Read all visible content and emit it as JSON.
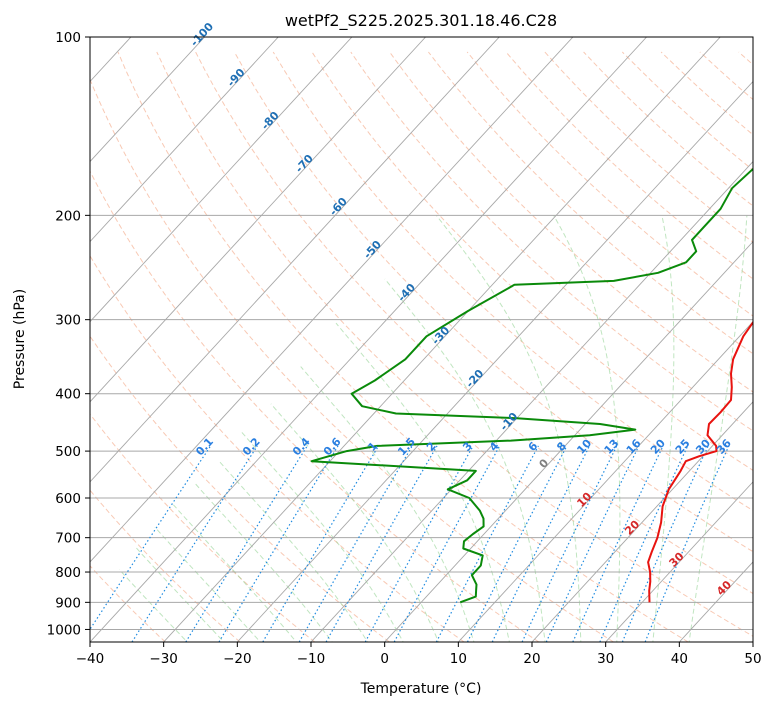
{
  "chart_data": {
    "type": "skew-t",
    "title": "wetPf2_S225.2025.301.18.46.C28",
    "xlabel": "Temperature (°C)",
    "ylabel": "Pressure (hPa)",
    "xlim": [
      -40,
      50
    ],
    "ylim": [
      1050,
      100
    ],
    "x_ticks": [
      "−40",
      "−30",
      "−20",
      "−10",
      "0",
      "10",
      "20",
      "30",
      "40",
      "50"
    ],
    "y_ticks": [
      {
        "p": 100,
        "label": "100"
      },
      {
        "p": 200,
        "label": "200"
      },
      {
        "p": 300,
        "label": "300"
      },
      {
        "p": 400,
        "label": "400"
      },
      {
        "p": 500,
        "label": "500"
      },
      {
        "p": 600,
        "label": "600"
      },
      {
        "p": 700,
        "label": "700"
      },
      {
        "p": 800,
        "label": "800"
      },
      {
        "p": 900,
        "label": "900"
      },
      {
        "p": 1000,
        "label": "1000"
      }
    ],
    "colors": {
      "temperature": "#e8130f",
      "dewpoint": "#0a8a0a",
      "isotherm": "#a8a8a8",
      "dry_adiabat": "#f4a582",
      "moist_adiabat": "#8ccf8c",
      "mixing_ratio": "#1f8be0",
      "mixing_label": "#2a7fe0",
      "isotherm_label": "#1f6fb4",
      "isotherm_zero_label": "#808080",
      "dry_label": "#d62728"
    },
    "series": [
      {
        "name": "Temperature",
        "points": [
          {
            "p": 900,
            "t": 31.0
          },
          {
            "p": 860,
            "t": 29.5
          },
          {
            "p": 830,
            "t": 28.5
          },
          {
            "p": 800,
            "t": 27.3
          },
          {
            "p": 770,
            "t": 25.8
          },
          {
            "p": 740,
            "t": 25.0
          },
          {
            "p": 700,
            "t": 24.0
          },
          {
            "p": 660,
            "t": 22.6
          },
          {
            "p": 620,
            "t": 20.8
          },
          {
            "p": 580,
            "t": 19.5
          },
          {
            "p": 540,
            "t": 18.8
          },
          {
            "p": 520,
            "t": 18.3
          },
          {
            "p": 510,
            "t": 19.5
          },
          {
            "p": 500,
            "t": 21.2
          },
          {
            "p": 490,
            "t": 20.5
          },
          {
            "p": 470,
            "t": 18.0
          },
          {
            "p": 450,
            "t": 16.8
          },
          {
            "p": 430,
            "t": 16.9
          },
          {
            "p": 410,
            "t": 16.8
          },
          {
            "p": 390,
            "t": 15.3
          },
          {
            "p": 370,
            "t": 13.5
          },
          {
            "p": 350,
            "t": 12.0
          },
          {
            "p": 320,
            "t": 10.5
          },
          {
            "p": 300,
            "t": 10.0
          },
          {
            "p": 280,
            "t": 8.5
          },
          {
            "p": 260,
            "t": 6.0
          },
          {
            "p": 240,
            "t": 3.3
          },
          {
            "p": 220,
            "t": 3.0
          },
          {
            "p": 200,
            "t": 3.3
          },
          {
            "p": 180,
            "t": 4.5
          },
          {
            "p": 160,
            "t": 4.6
          },
          {
            "p": 140,
            "t": 4.2
          },
          {
            "p": 125,
            "t": 5.5
          },
          {
            "p": 112,
            "t": 7.0
          },
          {
            "p": 100,
            "t": 8.8
          }
        ]
      },
      {
        "name": "Dewpoint",
        "points": [
          {
            "p": 900,
            "t": 5.3
          },
          {
            "p": 880,
            "t": 6.7
          },
          {
            "p": 860,
            "t": 6.0
          },
          {
            "p": 840,
            "t": 5.3
          },
          {
            "p": 810,
            "t": 3.5
          },
          {
            "p": 780,
            "t": 3.5
          },
          {
            "p": 750,
            "t": 2.5
          },
          {
            "p": 730,
            "t": -1.0
          },
          {
            "p": 710,
            "t": -1.8
          },
          {
            "p": 690,
            "t": -1.5
          },
          {
            "p": 670,
            "t": -1.0
          },
          {
            "p": 650,
            "t": -2.0
          },
          {
            "p": 630,
            "t": -3.5
          },
          {
            "p": 600,
            "t": -6.5
          },
          {
            "p": 580,
            "t": -10.5
          },
          {
            "p": 560,
            "t": -9.0
          },
          {
            "p": 540,
            "t": -9.0
          },
          {
            "p": 520,
            "t": -32.5
          },
          {
            "p": 500,
            "t": -29.0
          },
          {
            "p": 490,
            "t": -25.5
          },
          {
            "p": 480,
            "t": -8.0
          },
          {
            "p": 470,
            "t": 2.0
          },
          {
            "p": 460,
            "t": 7.5
          },
          {
            "p": 450,
            "t": 2.0
          },
          {
            "p": 440,
            "t": -10.0
          },
          {
            "p": 432,
            "t": -27.0
          },
          {
            "p": 420,
            "t": -32.5
          },
          {
            "p": 400,
            "t": -35.5
          },
          {
            "p": 380,
            "t": -34.0
          },
          {
            "p": 350,
            "t": -32.5
          },
          {
            "p": 320,
            "t": -32.5
          },
          {
            "p": 290,
            "t": -30.0
          },
          {
            "p": 262,
            "t": -27.0
          },
          {
            "p": 258,
            "t": -14.0
          },
          {
            "p": 250,
            "t": -9.0
          },
          {
            "p": 240,
            "t": -6.5
          },
          {
            "p": 230,
            "t": -6.5
          },
          {
            "p": 220,
            "t": -8.5
          },
          {
            "p": 210,
            "t": -8.5
          },
          {
            "p": 195,
            "t": -8.5
          },
          {
            "p": 180,
            "t": -9.5
          },
          {
            "p": 165,
            "t": -9.0
          },
          {
            "p": 150,
            "t": -7.5
          },
          {
            "p": 130,
            "t": -5.5
          },
          {
            "p": 115,
            "t": -2.5
          },
          {
            "p": 100,
            "t": 0.5
          }
        ]
      }
    ],
    "isotherm_labels": [
      {
        "t": -100,
        "text": "-100"
      },
      {
        "t": -90,
        "text": "-90"
      },
      {
        "t": -80,
        "text": "-80"
      },
      {
        "t": -70,
        "text": "-70"
      },
      {
        "t": -60,
        "text": "-60"
      },
      {
        "t": -50,
        "text": "-50"
      },
      {
        "t": -40,
        "text": "-40"
      },
      {
        "t": -30,
        "text": "-30"
      },
      {
        "t": -20,
        "text": "-20"
      },
      {
        "t": -10,
        "text": "-10"
      }
    ],
    "isotherm_zero_label": {
      "t": 0,
      "p": 530,
      "text": "0"
    },
    "dry_adiabat_labels": [
      {
        "t": 10,
        "p": 610,
        "text": "10"
      },
      {
        "t": 20,
        "p": 680,
        "text": "20"
      },
      {
        "t": 30,
        "p": 770,
        "text": "30"
      },
      {
        "t": 40,
        "p": 860,
        "text": "40"
      }
    ],
    "mixing_ratios": [
      {
        "w": 0.1,
        "text": "0.1"
      },
      {
        "w": 0.2,
        "text": "0.2"
      },
      {
        "w": 0.4,
        "text": "0.4"
      },
      {
        "w": 0.6,
        "text": "0.6"
      },
      {
        "w": 1,
        "text": "1"
      },
      {
        "w": 1.5,
        "text": "1.5"
      },
      {
        "w": 2,
        "text": "2"
      },
      {
        "w": 3,
        "text": "3"
      },
      {
        "w": 4,
        "text": "4"
      },
      {
        "w": 6,
        "text": "6"
      },
      {
        "w": 8,
        "text": "8"
      },
      {
        "w": 10,
        "text": "10"
      },
      {
        "w": 13,
        "text": "13"
      },
      {
        "w": 16,
        "text": "16"
      },
      {
        "w": 20,
        "text": "20"
      },
      {
        "w": 25,
        "text": "25"
      },
      {
        "w": 30,
        "text": "30"
      },
      {
        "w": 36,
        "text": "36"
      }
    ]
  }
}
